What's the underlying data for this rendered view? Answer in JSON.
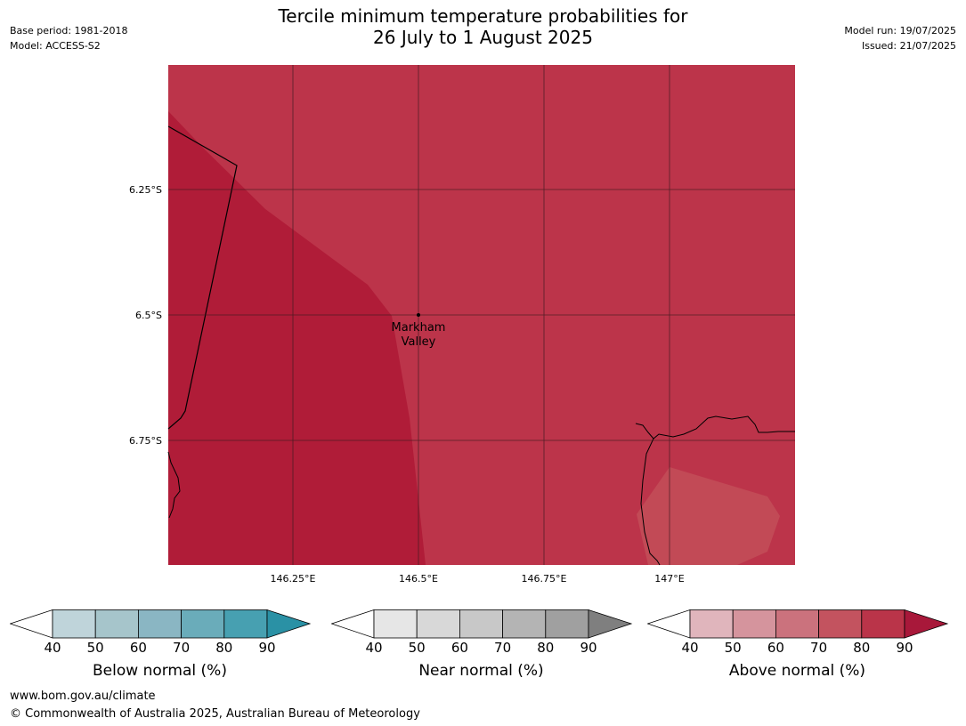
{
  "title_line1": "Tercile minimum temperature probabilities for",
  "title_line2": "26 July to 1 August 2025",
  "base_period": "Base period: 1981-2018",
  "model": "Model: ACCESS-S2",
  "model_run": "Model run: 19/07/2025",
  "issued": "Issued: 21/07/2025",
  "map": {
    "lat_labels": [
      "6.25°S",
      "6.5°S",
      "6.75°S"
    ],
    "lon_labels": [
      "146.25°E",
      "146.5°E",
      "146.75°E",
      "147°E"
    ],
    "place_line1": "Markham",
    "place_line2": "Valley"
  },
  "colorbars": [
    {
      "title": "Below normal (%)",
      "ticks": [
        "40",
        "50",
        "60",
        "70",
        "80",
        "90"
      ],
      "colors": [
        "#ffffff",
        "#bfd4da",
        "#a6c5cb",
        "#8ab6c3",
        "#6aacba",
        "#47a0b1",
        "#2a91a5"
      ]
    },
    {
      "title": "Near normal (%)",
      "ticks": [
        "40",
        "50",
        "60",
        "70",
        "80",
        "90"
      ],
      "colors": [
        "#ffffff",
        "#e6e6e6",
        "#d8d8d8",
        "#c8c8c8",
        "#b4b4b4",
        "#a0a0a0",
        "#7f7f7f"
      ]
    },
    {
      "title": "Above normal (%)",
      "ticks": [
        "40",
        "50",
        "60",
        "70",
        "80",
        "90"
      ],
      "colors": [
        "#ffffff",
        "#e0b5bc",
        "#d5949d",
        "#cb727d",
        "#c3535f",
        "#ba3449",
        "#a8183a"
      ]
    }
  ],
  "footer_url": "www.bom.gov.au/climate",
  "footer_copyright": "© Commonwealth of Australia 2025, Australian Bureau of Meteorology"
}
